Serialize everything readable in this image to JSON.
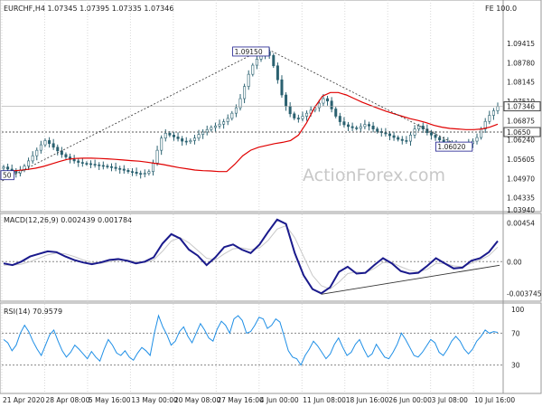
{
  "chart_data": [
    {
      "type": "candlestick",
      "header_text": "EURCHF,H4  1.07345 1.07395 1.07335 1.07346",
      "corner_text": "FE 100.0",
      "watermark": "ActionForex.com",
      "y_ticks": [
        "1.09415",
        "1.08780",
        "1.08145",
        "1.07510",
        "1.06875",
        "1.06240",
        "1.05605",
        "1.04970",
        "1.04335",
        "1.03940"
      ],
      "ylim": [
        1.0394,
        1.1025
      ],
      "price_marker": {
        "label": "1.07346",
        "value": 1.07346
      },
      "hlines": [
        {
          "label": "1.0650",
          "value": 1.065,
          "style": "dashed"
        }
      ],
      "callouts": [
        {
          "label": "1.09150",
          "value": 1.0915
        },
        {
          "label": "1.06020",
          "value": 1.0602
        },
        {
          "label": "50",
          "value": 1.0508
        }
      ],
      "series": [
        {
          "kind": "candles",
          "close_path": [
            1.0535,
            1.0528,
            1.0522,
            1.0515,
            1.0525,
            1.0538,
            1.0555,
            1.0572,
            1.059,
            1.0608,
            1.0622,
            1.0612,
            1.06,
            1.0588,
            1.0576,
            1.0568,
            1.056,
            1.0555,
            1.055,
            1.0547,
            1.0546,
            1.0544,
            1.0542,
            1.054,
            1.0538,
            1.0536,
            1.0534,
            1.053,
            1.0528,
            1.0524,
            1.052,
            1.0518,
            1.0514,
            1.0512,
            1.0514,
            1.052,
            1.0548,
            1.059,
            1.063,
            1.0646,
            1.064,
            1.0634,
            1.0628,
            1.062,
            1.0618,
            1.0622,
            1.063,
            1.0642,
            1.065,
            1.0658,
            1.0665,
            1.067,
            1.0676,
            1.0684,
            1.0695,
            1.0712,
            1.073,
            1.076,
            1.08,
            1.084,
            1.087,
            1.089,
            1.0905,
            1.0915,
            1.0902,
            1.0868,
            1.0822,
            1.0772,
            1.0735,
            1.071,
            1.0696,
            1.0694,
            1.0702,
            1.0712,
            1.0722,
            1.073,
            1.0745,
            1.076,
            1.0752,
            1.0726,
            1.0702,
            1.0684,
            1.0674,
            1.0668,
            1.0664,
            1.0662,
            1.0668,
            1.0675,
            1.067,
            1.066,
            1.0652,
            1.0648,
            1.0644,
            1.0638,
            1.0632,
            1.0626,
            1.0622,
            1.062,
            1.064,
            1.066,
            1.067,
            1.066,
            1.0648,
            1.064,
            1.0632,
            1.0624,
            1.0618,
            1.0614,
            1.061,
            1.0604,
            1.0602,
            1.0606,
            1.0612,
            1.062,
            1.0632,
            1.066,
            1.0685,
            1.0705,
            1.072,
            1.0734
          ]
        },
        {
          "kind": "moving_average",
          "color": "#e00000",
          "values": [
            1.052,
            1.0522,
            1.0524,
            1.0527,
            1.0531,
            1.0537,
            1.0545,
            1.0553,
            1.056,
            1.0563,
            1.0564,
            1.0564,
            1.0563,
            1.0562,
            1.056,
            1.0558,
            1.0556,
            1.0554,
            1.0551,
            1.0547,
            1.0543,
            1.0538,
            1.0533,
            1.0529,
            1.0525,
            1.0523,
            1.0522,
            1.052,
            1.052,
            1.0544,
            1.0572,
            1.059,
            1.06,
            1.0606,
            1.0612,
            1.0616,
            1.0622,
            1.064,
            1.068,
            1.073,
            1.0768,
            1.078,
            1.078,
            1.0772,
            1.076,
            1.0748,
            1.0738,
            1.0728,
            1.0718,
            1.071,
            1.0702,
            1.0694,
            1.0688,
            1.0681,
            1.0672,
            1.0666,
            1.0662,
            1.066,
            1.0658,
            1.0658,
            1.066,
            1.0666,
            1.0676
          ]
        },
        {
          "kind": "macd",
          "label": "MACD(12,26,9) 0.002439 0.001784",
          "ticks": [
            "0.00454",
            "0.00",
            "-0.003745"
          ],
          "ylim": [
            -0.0043,
            0.0052
          ],
          "values": [
            -0.0002,
            -0.0004,
            0.0,
            0.0006,
            0.0009,
            0.0012,
            0.0011,
            0.0006,
            0.0002,
            -0.0001,
            -0.0003,
            -0.0001,
            0.0002,
            0.0003,
            0.0001,
            -0.0002,
            0.0,
            0.0005,
            0.0021,
            0.0032,
            0.0027,
            0.0014,
            0.0007,
            -0.0004,
            0.0005,
            0.0017,
            0.002,
            0.0014,
            0.001,
            0.002,
            0.0035,
            0.0049,
            0.0044,
            0.001,
            -0.0016,
            -0.0032,
            -0.0037,
            -0.003,
            -0.0012,
            -0.0006,
            -0.0014,
            -0.0013,
            -0.0004,
            0.0004,
            -0.0002,
            -0.0011,
            -0.0014,
            -0.0013,
            -0.0005,
            0.0004,
            -0.0002,
            -0.0008,
            -0.0007,
            0.0001,
            0.0004,
            0.0011,
            0.0024
          ],
          "signal": [
            -0.0004,
            -0.0004,
            -0.0003,
            0.0,
            0.0004,
            0.0008,
            0.001,
            0.0009,
            0.0006,
            0.0002,
            -0.0001,
            -0.0002,
            0.0,
            0.0002,
            0.0002,
            0.0,
            -0.0001,
            0.0002,
            0.0012,
            0.0024,
            0.0028,
            0.0022,
            0.0013,
            0.0004,
            0.0002,
            0.0009,
            0.0015,
            0.0016,
            0.0014,
            0.0016,
            0.0025,
            0.0038,
            0.0042,
            0.0028,
            0.0006,
            -0.0016,
            -0.0028,
            -0.0032,
            -0.0024,
            -0.0014,
            -0.0012,
            -0.0013,
            -0.0008,
            -0.0001,
            -0.0001,
            -0.0006,
            -0.001,
            -0.0012,
            -0.0009,
            -0.0002,
            -0.0002,
            -0.0005,
            -0.0006,
            -0.0002,
            0.0002,
            0.0007,
            0.0017
          ]
        },
        {
          "kind": "rsi",
          "label": "RSI(14) 70.9579",
          "ticks": [
            "100",
            "70",
            "30",
            "0"
          ],
          "ylim": [
            0,
            100
          ],
          "levels": [
            70,
            30
          ],
          "values": [
            62,
            58,
            48,
            55,
            70,
            80,
            72,
            60,
            50,
            42,
            55,
            68,
            74,
            60,
            48,
            40,
            46,
            55,
            50,
            44,
            38,
            47,
            40,
            35,
            50,
            62,
            55,
            45,
            42,
            48,
            40,
            36,
            45,
            52,
            48,
            42,
            70,
            92,
            78,
            68,
            55,
            60,
            72,
            78,
            66,
            58,
            70,
            82,
            74,
            64,
            60,
            75,
            85,
            80,
            70,
            88,
            92,
            86,
            70,
            72,
            80,
            90,
            88,
            76,
            80,
            88,
            84,
            66,
            48,
            40,
            38,
            30,
            42,
            50,
            60,
            54,
            46,
            38,
            44,
            56,
            64,
            52,
            42,
            46,
            56,
            62,
            50,
            40,
            44,
            56,
            48,
            40,
            38,
            46,
            56,
            70,
            62,
            52,
            42,
            40,
            46,
            54,
            62,
            58,
            46,
            42,
            50,
            60,
            66,
            60,
            50,
            44,
            50,
            60,
            66,
            74,
            70,
            72,
            71
          ]
        }
      ],
      "x_ticks": [
        "21 Apr 2020",
        "28 Apr 08:00",
        "5 May 16:00",
        "13 May 00:00",
        "20 May 08:00",
        "27 May 16:00",
        "4 Jun 00:00",
        "11 Jun 08:00",
        "18 Jun 16:00",
        "26 Jun 00:00",
        "3 Jul 08:00",
        "10 Jul 16:00"
      ],
      "colors": {
        "candles": "#2a6170",
        "ma": "#e00000",
        "macd": "#1a1a8c",
        "signal": "#c8c8c8",
        "rsi": "#1f8fe6",
        "trend": "#333333"
      }
    }
  ]
}
